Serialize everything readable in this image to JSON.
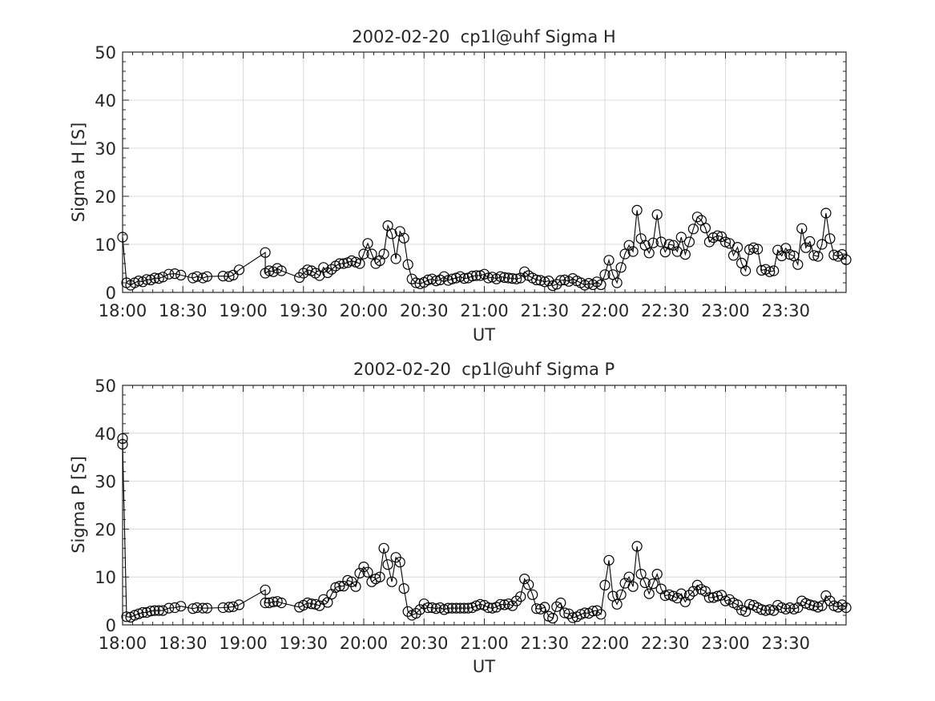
{
  "chart_data": [
    {
      "type": "line",
      "title": "2002-02-20  cp1l@uhf Sigma H",
      "xlabel": "UT",
      "ylabel": "Sigma H [S]",
      "xlim": [
        "18:00",
        "24:00"
      ],
      "ylim": [
        0,
        50
      ],
      "xticks": [
        "18:00",
        "18:30",
        "19:00",
        "19:30",
        "20:00",
        "20:30",
        "21:00",
        "21:30",
        "22:00",
        "22:30",
        "23:00",
        "23:30"
      ],
      "yticks": [
        0,
        10,
        20,
        30,
        40,
        50
      ],
      "grid": true,
      "marker": "circle",
      "color": "#000000",
      "points": [
        [
          "18:00",
          11.5
        ],
        [
          "18:02",
          2.0
        ],
        [
          "18:04",
          1.5
        ],
        [
          "18:06",
          2.0
        ],
        [
          "18:08",
          2.4
        ],
        [
          "18:10",
          2.2
        ],
        [
          "18:12",
          2.7
        ],
        [
          "18:14",
          2.6
        ],
        [
          "18:16",
          3.0
        ],
        [
          "18:18",
          2.9
        ],
        [
          "18:20",
          3.2
        ],
        [
          "18:23",
          3.8
        ],
        [
          "18:26",
          3.9
        ],
        [
          "18:29",
          3.6
        ],
        [
          "18:35",
          3.0
        ],
        [
          "18:37",
          3.3
        ],
        [
          "18:40",
          3.0
        ],
        [
          "18:42",
          3.3
        ],
        [
          "18:50",
          3.4
        ],
        [
          "18:53",
          3.3
        ],
        [
          "18:55",
          3.6
        ],
        [
          "18:58",
          4.7
        ],
        [
          "19:11",
          8.3
        ],
        [
          "19:11",
          4.0
        ],
        [
          "19:13",
          4.5
        ],
        [
          "19:15",
          4.3
        ],
        [
          "19:17",
          5.0
        ],
        [
          "19:19",
          4.5
        ],
        [
          "19:28",
          3.1
        ],
        [
          "19:30",
          4.0
        ],
        [
          "19:32",
          4.7
        ],
        [
          "19:34",
          4.5
        ],
        [
          "19:36",
          4.0
        ],
        [
          "19:38",
          3.5
        ],
        [
          "19:40",
          5.2
        ],
        [
          "19:42",
          4.1
        ],
        [
          "19:44",
          4.8
        ],
        [
          "19:46",
          5.5
        ],
        [
          "19:48",
          6.0
        ],
        [
          "19:50",
          6.0
        ],
        [
          "19:52",
          6.2
        ],
        [
          "19:54",
          6.6
        ],
        [
          "19:56",
          6.3
        ],
        [
          "19:58",
          6.0
        ],
        [
          "20:00",
          8.0
        ],
        [
          "20:02",
          10.2
        ],
        [
          "20:04",
          8.0
        ],
        [
          "20:06",
          6.0
        ],
        [
          "20:08",
          6.6
        ],
        [
          "20:10",
          8.0
        ],
        [
          "20:12",
          13.9
        ],
        [
          "20:14",
          12.2
        ],
        [
          "20:16",
          7.0
        ],
        [
          "20:18",
          12.7
        ],
        [
          "20:20",
          11.3
        ],
        [
          "20:22",
          5.8
        ],
        [
          "20:24",
          2.8
        ],
        [
          "20:26",
          2.0
        ],
        [
          "20:28",
          1.8
        ],
        [
          "20:30",
          2.1
        ],
        [
          "20:32",
          2.6
        ],
        [
          "20:34",
          2.8
        ],
        [
          "20:36",
          2.4
        ],
        [
          "20:38",
          2.6
        ],
        [
          "20:40",
          3.3
        ],
        [
          "20:42",
          2.5
        ],
        [
          "20:44",
          2.8
        ],
        [
          "20:46",
          3.0
        ],
        [
          "20:48",
          3.3
        ],
        [
          "20:50",
          2.9
        ],
        [
          "20:52",
          3.0
        ],
        [
          "20:54",
          3.4
        ],
        [
          "20:56",
          3.5
        ],
        [
          "20:58",
          3.5
        ],
        [
          "21:00",
          3.8
        ],
        [
          "21:02",
          3.0
        ],
        [
          "21:04",
          3.2
        ],
        [
          "21:06",
          2.8
        ],
        [
          "21:08",
          3.3
        ],
        [
          "21:10",
          3.1
        ],
        [
          "21:12",
          3.0
        ],
        [
          "21:14",
          2.9
        ],
        [
          "21:16",
          2.8
        ],
        [
          "21:18",
          3.0
        ],
        [
          "21:20",
          4.3
        ],
        [
          "21:22",
          3.5
        ],
        [
          "21:24",
          3.0
        ],
        [
          "21:26",
          2.6
        ],
        [
          "21:28",
          2.5
        ],
        [
          "21:30",
          2.2
        ],
        [
          "21:32",
          2.4
        ],
        [
          "21:34",
          1.4
        ],
        [
          "21:36",
          1.7
        ],
        [
          "21:38",
          2.5
        ],
        [
          "21:40",
          2.6
        ],
        [
          "21:42",
          2.3
        ],
        [
          "21:44",
          2.9
        ],
        [
          "21:46",
          2.4
        ],
        [
          "21:48",
          2.0
        ],
        [
          "21:50",
          1.5
        ],
        [
          "21:52",
          1.9
        ],
        [
          "21:54",
          1.6
        ],
        [
          "21:56",
          2.2
        ],
        [
          "21:58",
          1.6
        ],
        [
          "22:00",
          3.7
        ],
        [
          "22:02",
          6.7
        ],
        [
          "22:04",
          3.7
        ],
        [
          "22:06",
          2.0
        ],
        [
          "22:08",
          5.2
        ],
        [
          "22:10",
          8.0
        ],
        [
          "22:12",
          9.8
        ],
        [
          "22:14",
          8.5
        ],
        [
          "22:16",
          17.1
        ],
        [
          "22:18",
          11.2
        ],
        [
          "22:20",
          9.8
        ],
        [
          "22:22",
          8.2
        ],
        [
          "22:24",
          10.3
        ],
        [
          "22:26",
          16.2
        ],
        [
          "22:28",
          10.5
        ],
        [
          "22:30",
          8.4
        ],
        [
          "22:32",
          10.0
        ],
        [
          "22:34",
          9.8
        ],
        [
          "22:36",
          8.5
        ],
        [
          "22:38",
          11.5
        ],
        [
          "22:40",
          7.9
        ],
        [
          "22:42",
          10.5
        ],
        [
          "22:44",
          13.2
        ],
        [
          "22:46",
          15.7
        ],
        [
          "22:48",
          15.0
        ],
        [
          "22:50",
          13.4
        ],
        [
          "22:52",
          10.5
        ],
        [
          "22:54",
          11.4
        ],
        [
          "22:56",
          11.8
        ],
        [
          "22:58",
          11.6
        ],
        [
          "23:00",
          10.5
        ],
        [
          "23:02",
          10.2
        ],
        [
          "23:04",
          7.7
        ],
        [
          "23:06",
          9.4
        ],
        [
          "23:08",
          6.1
        ],
        [
          "23:10",
          4.5
        ],
        [
          "23:12",
          8.9
        ],
        [
          "23:14",
          9.3
        ],
        [
          "23:16",
          9.0
        ],
        [
          "23:18",
          4.6
        ],
        [
          "23:20",
          4.8
        ],
        [
          "23:22",
          4.3
        ],
        [
          "23:24",
          4.5
        ],
        [
          "23:26",
          8.8
        ],
        [
          "23:28",
          7.6
        ],
        [
          "23:30",
          9.2
        ],
        [
          "23:32",
          7.9
        ],
        [
          "23:34",
          7.6
        ],
        [
          "23:36",
          5.8
        ],
        [
          "23:38",
          13.3
        ],
        [
          "23:40",
          9.3
        ],
        [
          "23:42",
          10.6
        ],
        [
          "23:44",
          7.7
        ],
        [
          "23:46",
          7.5
        ],
        [
          "23:48",
          10.0
        ],
        [
          "23:50",
          16.5
        ],
        [
          "23:52",
          11.2
        ],
        [
          "23:54",
          7.8
        ],
        [
          "23:56",
          7.5
        ],
        [
          "23:58",
          7.9
        ],
        [
          "24:00",
          6.8
        ]
      ]
    },
    {
      "type": "line",
      "title": "2002-02-20  cp1l@uhf Sigma P",
      "xlabel": "UT",
      "ylabel": "Sigma P [S]",
      "xlim": [
        "18:00",
        "24:00"
      ],
      "ylim": [
        0,
        50
      ],
      "xticks": [
        "18:00",
        "18:30",
        "19:00",
        "19:30",
        "20:00",
        "20:30",
        "21:00",
        "21:30",
        "22:00",
        "22:30",
        "23:00",
        "23:30"
      ],
      "yticks": [
        0,
        10,
        20,
        30,
        40,
        50
      ],
      "grid": true,
      "marker": "circle",
      "color": "#000000",
      "points": [
        [
          "18:00",
          38.9
        ],
        [
          "18:00",
          37.7
        ],
        [
          "18:02",
          1.7
        ],
        [
          "18:04",
          1.6
        ],
        [
          "18:06",
          2.0
        ],
        [
          "18:08",
          2.3
        ],
        [
          "18:10",
          2.6
        ],
        [
          "18:12",
          2.6
        ],
        [
          "18:14",
          2.9
        ],
        [
          "18:16",
          3.0
        ],
        [
          "18:18",
          3.0
        ],
        [
          "18:20",
          3.0
        ],
        [
          "18:23",
          3.5
        ],
        [
          "18:26",
          3.6
        ],
        [
          "18:29",
          3.9
        ],
        [
          "18:35",
          3.4
        ],
        [
          "18:37",
          3.6
        ],
        [
          "18:40",
          3.5
        ],
        [
          "18:42",
          3.5
        ],
        [
          "18:50",
          3.6
        ],
        [
          "18:53",
          3.7
        ],
        [
          "18:55",
          3.8
        ],
        [
          "18:58",
          4.2
        ],
        [
          "19:11",
          7.3
        ],
        [
          "19:11",
          4.6
        ],
        [
          "19:13",
          4.6
        ],
        [
          "19:15",
          4.8
        ],
        [
          "19:17",
          4.9
        ],
        [
          "19:19",
          4.6
        ],
        [
          "19:28",
          3.7
        ],
        [
          "19:30",
          4.1
        ],
        [
          "19:32",
          4.6
        ],
        [
          "19:34",
          4.4
        ],
        [
          "19:36",
          4.3
        ],
        [
          "19:38",
          4.0
        ],
        [
          "19:40",
          5.3
        ],
        [
          "19:42",
          4.7
        ],
        [
          "19:44",
          6.4
        ],
        [
          "19:46",
          7.8
        ],
        [
          "19:48",
          8.1
        ],
        [
          "19:50",
          8.1
        ],
        [
          "19:52",
          9.3
        ],
        [
          "19:54",
          9.0
        ],
        [
          "19:56",
          8.0
        ],
        [
          "19:58",
          10.8
        ],
        [
          "20:00",
          12.1
        ],
        [
          "20:02",
          11.0
        ],
        [
          "20:04",
          9.0
        ],
        [
          "20:06",
          9.6
        ],
        [
          "20:08",
          10.0
        ],
        [
          "20:10",
          16.0
        ],
        [
          "20:12",
          12.6
        ],
        [
          "20:14",
          9.0
        ],
        [
          "20:16",
          14.1
        ],
        [
          "20:18",
          13.1
        ],
        [
          "20:20",
          7.6
        ],
        [
          "20:22",
          2.8
        ],
        [
          "20:24",
          2.0
        ],
        [
          "20:26",
          2.4
        ],
        [
          "20:28",
          3.2
        ],
        [
          "20:30",
          4.4
        ],
        [
          "20:32",
          3.6
        ],
        [
          "20:34",
          3.6
        ],
        [
          "20:36",
          3.4
        ],
        [
          "20:38",
          3.6
        ],
        [
          "20:40",
          3.2
        ],
        [
          "20:42",
          3.5
        ],
        [
          "20:44",
          3.5
        ],
        [
          "20:46",
          3.5
        ],
        [
          "20:48",
          3.5
        ],
        [
          "20:50",
          3.5
        ],
        [
          "20:52",
          3.5
        ],
        [
          "20:54",
          3.6
        ],
        [
          "20:56",
          4.0
        ],
        [
          "20:58",
          4.3
        ],
        [
          "21:00",
          4.1
        ],
        [
          "21:02",
          3.6
        ],
        [
          "21:04",
          3.5
        ],
        [
          "21:06",
          3.7
        ],
        [
          "21:08",
          4.3
        ],
        [
          "21:10",
          4.2
        ],
        [
          "21:12",
          4.4
        ],
        [
          "21:14",
          4.0
        ],
        [
          "21:16",
          5.0
        ],
        [
          "21:18",
          5.9
        ],
        [
          "21:20",
          9.6
        ],
        [
          "21:22",
          8.4
        ],
        [
          "21:24",
          6.3
        ],
        [
          "21:26",
          3.4
        ],
        [
          "21:28",
          3.3
        ],
        [
          "21:30",
          3.7
        ],
        [
          "21:32",
          1.8
        ],
        [
          "21:34",
          1.4
        ],
        [
          "21:36",
          3.8
        ],
        [
          "21:38",
          4.6
        ],
        [
          "21:40",
          2.5
        ],
        [
          "21:42",
          2.3
        ],
        [
          "21:44",
          1.5
        ],
        [
          "21:46",
          1.7
        ],
        [
          "21:48",
          2.2
        ],
        [
          "21:50",
          2.5
        ],
        [
          "21:52",
          2.4
        ],
        [
          "21:54",
          2.9
        ],
        [
          "21:56",
          3.0
        ],
        [
          "21:58",
          2.2
        ],
        [
          "22:00",
          8.3
        ],
        [
          "22:02",
          13.5
        ],
        [
          "22:04",
          6.0
        ],
        [
          "22:06",
          4.3
        ],
        [
          "22:08",
          6.3
        ],
        [
          "22:10",
          8.7
        ],
        [
          "22:12",
          10.0
        ],
        [
          "22:14",
          8.0
        ],
        [
          "22:16",
          16.4
        ],
        [
          "22:18",
          10.6
        ],
        [
          "22:20",
          8.8
        ],
        [
          "22:22",
          6.5
        ],
        [
          "22:24",
          8.6
        ],
        [
          "22:26",
          10.6
        ],
        [
          "22:28",
          7.5
        ],
        [
          "22:30",
          6.1
        ],
        [
          "22:32",
          6.3
        ],
        [
          "22:34",
          6.0
        ],
        [
          "22:36",
          5.6
        ],
        [
          "22:38",
          6.5
        ],
        [
          "22:40",
          4.8
        ],
        [
          "22:42",
          6.2
        ],
        [
          "22:44",
          7.0
        ],
        [
          "22:46",
          8.3
        ],
        [
          "22:48",
          7.4
        ],
        [
          "22:50",
          7.0
        ],
        [
          "22:52",
          5.7
        ],
        [
          "22:54",
          5.7
        ],
        [
          "22:56",
          6.0
        ],
        [
          "22:58",
          6.2
        ],
        [
          "23:00",
          5.0
        ],
        [
          "23:02",
          5.3
        ],
        [
          "23:04",
          4.6
        ],
        [
          "23:06",
          4.2
        ],
        [
          "23:08",
          3.1
        ],
        [
          "23:10",
          2.8
        ],
        [
          "23:12",
          4.3
        ],
        [
          "23:14",
          4.1
        ],
        [
          "23:16",
          3.6
        ],
        [
          "23:18",
          3.2
        ],
        [
          "23:20",
          3.0
        ],
        [
          "23:22",
          3.2
        ],
        [
          "23:24",
          3.0
        ],
        [
          "23:26",
          4.1
        ],
        [
          "23:28",
          3.6
        ],
        [
          "23:30",
          3.3
        ],
        [
          "23:32",
          3.6
        ],
        [
          "23:34",
          3.3
        ],
        [
          "23:36",
          3.6
        ],
        [
          "23:38",
          5.0
        ],
        [
          "23:40",
          4.5
        ],
        [
          "23:42",
          4.2
        ],
        [
          "23:44",
          4.0
        ],
        [
          "23:46",
          3.7
        ],
        [
          "23:48",
          4.0
        ],
        [
          "23:50",
          6.1
        ],
        [
          "23:52",
          5.0
        ],
        [
          "23:54",
          4.0
        ],
        [
          "23:56",
          3.7
        ],
        [
          "23:58",
          4.2
        ],
        [
          "24:00",
          3.6
        ]
      ]
    }
  ]
}
